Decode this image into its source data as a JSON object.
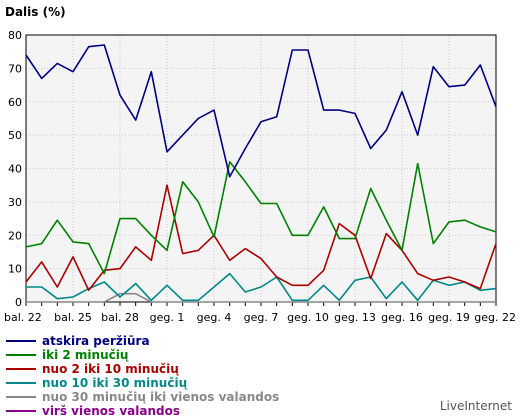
{
  "chart_data": {
    "type": "line",
    "ylabel": "Dalis (%)",
    "ylim": [
      0,
      80
    ],
    "y_ticks": [
      0,
      10,
      20,
      30,
      40,
      50,
      60,
      70,
      80
    ],
    "x_tick_labels": [
      "bal. 22",
      "bal. 25",
      "bal. 28",
      "geg. 1",
      "geg. 4",
      "geg. 7",
      "geg. 10",
      "geg. 13",
      "geg. 16",
      "geg. 19",
      "geg. 22"
    ],
    "x_tick_index": [
      0,
      3,
      6,
      9,
      12,
      15,
      18,
      21,
      24,
      27,
      30
    ],
    "grid": true,
    "legend_position": "bottom",
    "series": [
      {
        "name": "atskira peržiūra",
        "color": "#000080",
        "values": [
          74,
          67,
          71.5,
          69,
          76.5,
          77,
          62,
          54.5,
          69,
          45,
          50,
          55,
          57.5,
          37.5,
          46,
          54,
          55.5,
          75.5,
          75.5,
          57.5,
          57.5,
          56.5,
          46,
          51.5,
          63,
          50,
          70.5,
          64.5,
          65,
          71,
          58.5
        ]
      },
      {
        "name": "iki 2 minučių",
        "color": "#008000",
        "values": [
          16.5,
          17.5,
          24.5,
          18,
          17.5,
          8.5,
          25,
          25,
          20,
          15.5,
          36,
          30,
          19.5,
          42,
          36,
          29.5,
          29.5,
          20,
          20,
          28.5,
          19,
          19,
          34,
          24.5,
          15.5,
          41.5,
          17.5,
          24,
          24.5,
          22.5,
          21
        ]
      },
      {
        "name": "nuo 2 iki 10 minučių",
        "color": "#aa0000",
        "values": [
          6,
          12,
          4.5,
          13.5,
          3.5,
          9.5,
          10,
          16.5,
          12.5,
          35,
          14.5,
          15.5,
          20,
          12.5,
          16,
          13,
          7.5,
          5,
          5,
          9.5,
          23.5,
          20,
          7,
          20.5,
          15.5,
          8.5,
          6.5,
          7.5,
          6,
          4,
          17.5
        ]
      },
      {
        "name": "nuo 10 iki 30 minučių",
        "color": "#008888",
        "values": [
          4.5,
          4.5,
          1,
          1.5,
          4,
          6,
          1.5,
          5.5,
          0.5,
          5,
          0.5,
          0.5,
          4.5,
          8.5,
          3,
          4.5,
          7.5,
          0.5,
          0.5,
          5,
          0.5,
          6.5,
          7.5,
          1,
          6,
          0.5,
          6.5,
          5,
          6,
          3.5,
          4
        ]
      },
      {
        "name": "nuo 30 minučių iki vienos valandos",
        "color": "#888888",
        "values": [
          0,
          0,
          0,
          0,
          0,
          0,
          2.5,
          2.5,
          0,
          0,
          0,
          0,
          0,
          0,
          0,
          0,
          0,
          0,
          0,
          0,
          0,
          0,
          0,
          0,
          0,
          0,
          0,
          0,
          0,
          0,
          0
        ]
      },
      {
        "name": "virš vienos valandos",
        "color": "#880088",
        "values": [
          0,
          0,
          0,
          0,
          0,
          0,
          0,
          0,
          0,
          0,
          0,
          0,
          0,
          0,
          0,
          0,
          0,
          0,
          0,
          0,
          0,
          0,
          0,
          0,
          0,
          0,
          0,
          0,
          0,
          0,
          0
        ]
      }
    ]
  },
  "footer": {
    "brand": "LiveInternet"
  }
}
